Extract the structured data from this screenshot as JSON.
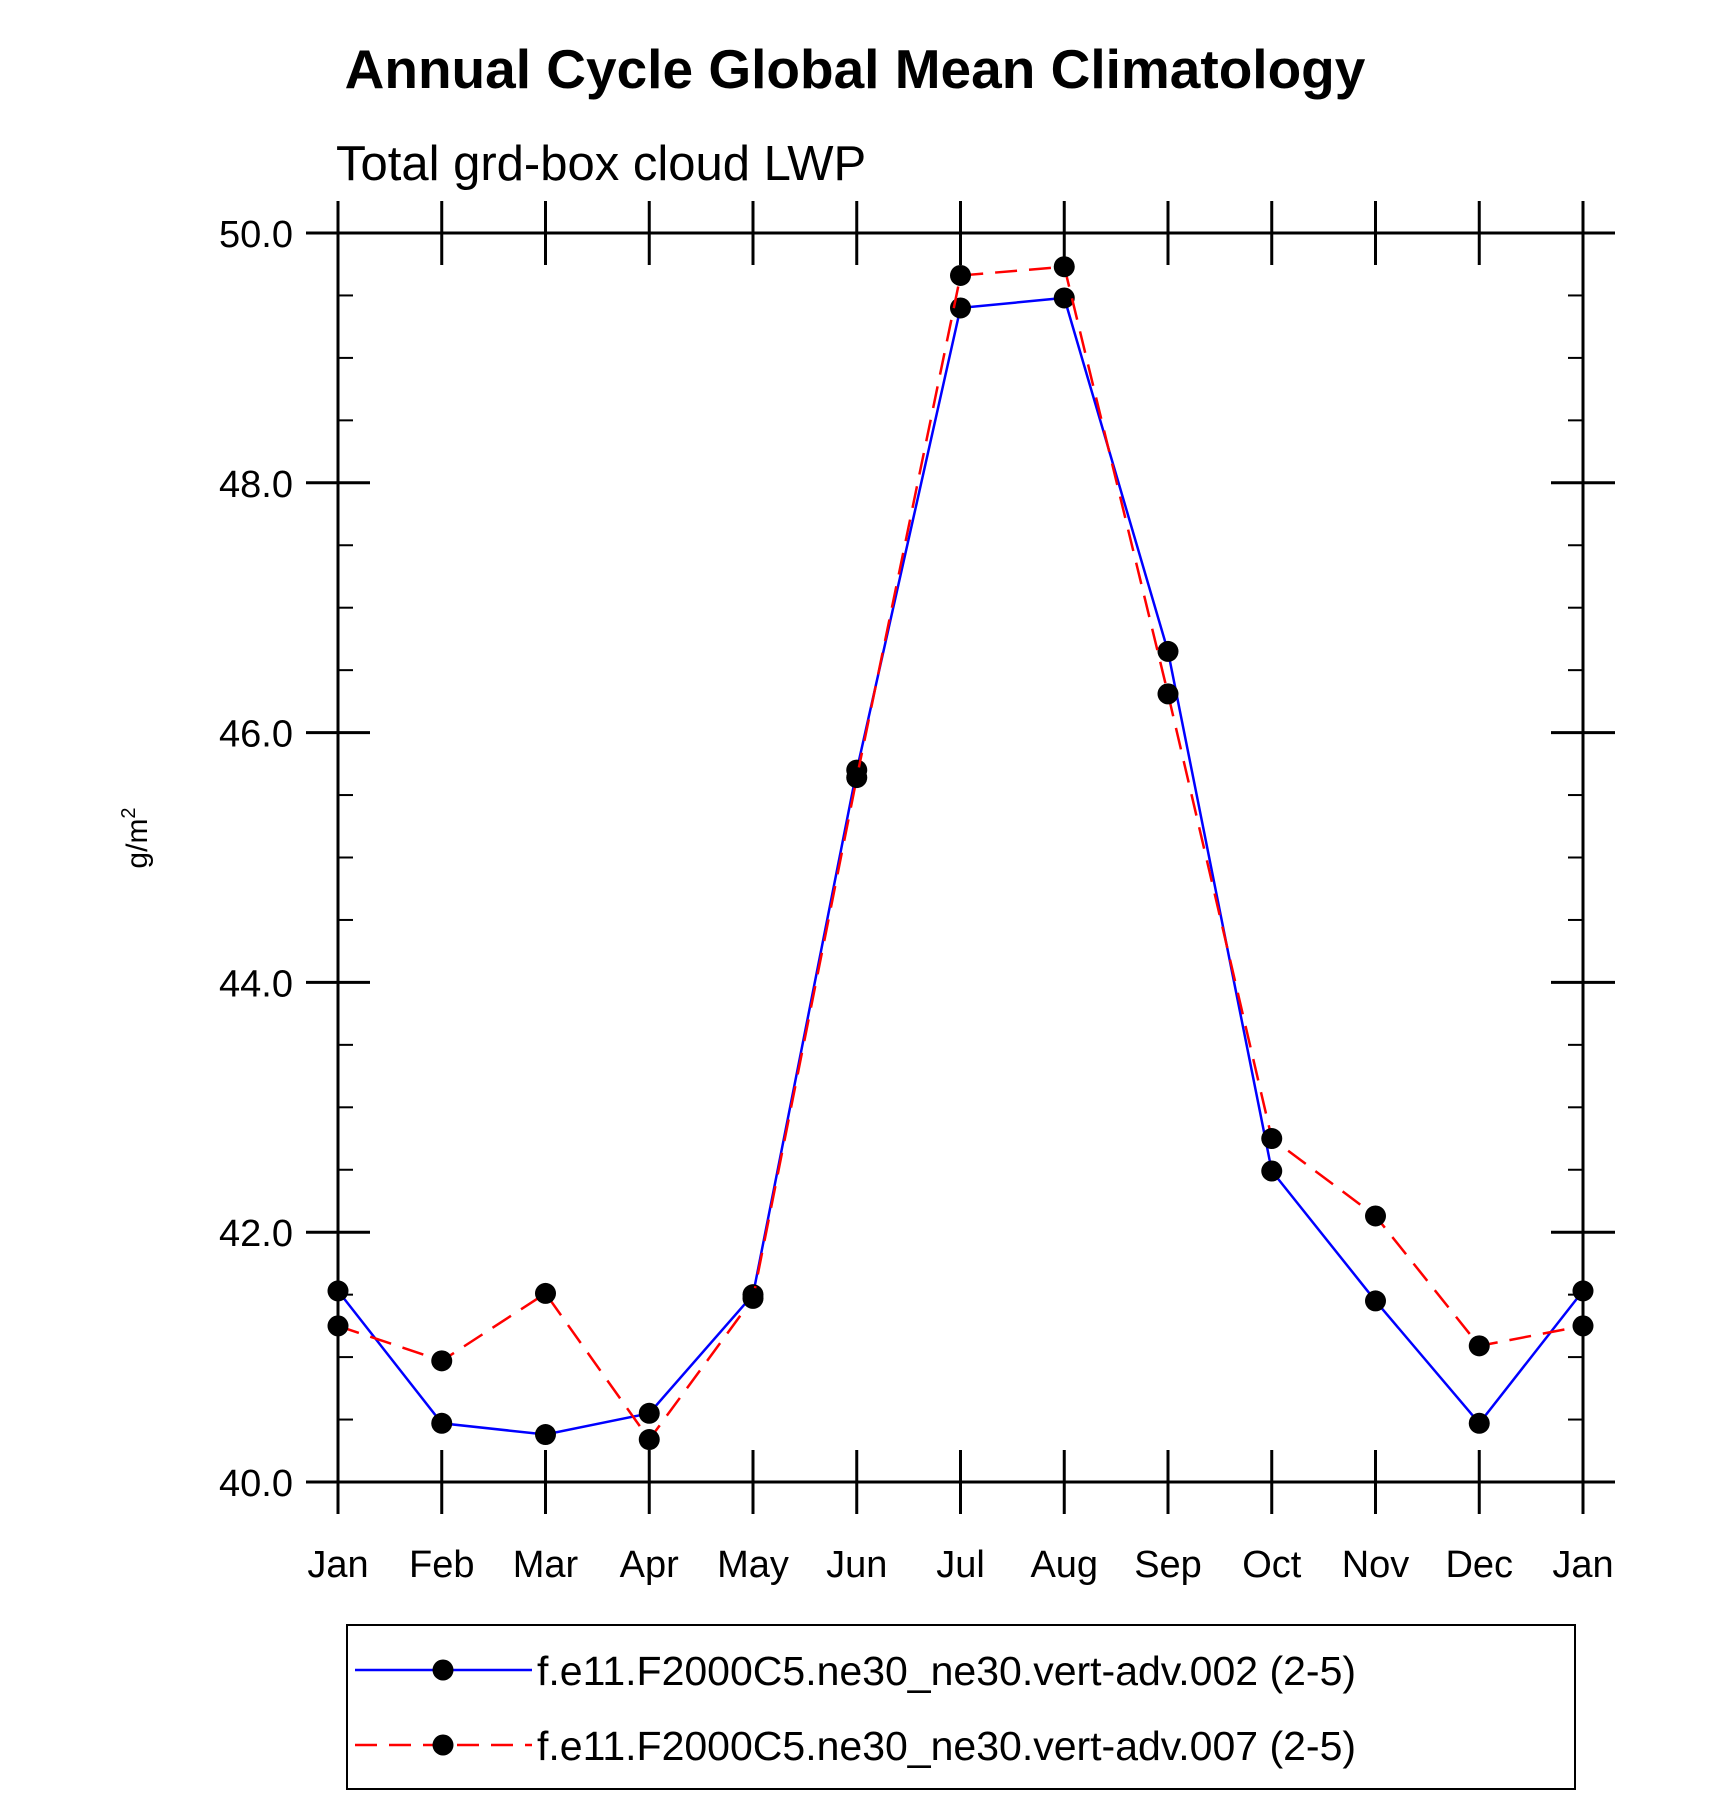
{
  "chart_data": {
    "type": "line",
    "title": "Annual Cycle Global Mean Climatology",
    "subtitle": "Total grd-box cloud LWP",
    "ylabel": "g/m",
    "ylabel_superscript": "2",
    "xlabel": "",
    "categories": [
      "Jan",
      "Feb",
      "Mar",
      "Apr",
      "May",
      "Jun",
      "Jul",
      "Aug",
      "Sep",
      "Oct",
      "Nov",
      "Dec",
      "Jan"
    ],
    "ylim": [
      40.0,
      50.0
    ],
    "yticks": [
      40.0,
      42.0,
      44.0,
      46.0,
      48.0,
      50.0
    ],
    "ytick_labels": [
      "40.0",
      "42.0",
      "44.0",
      "46.0",
      "48.0",
      "50.0"
    ],
    "y_minor_step": 0.5,
    "grid": false,
    "legend_position": "bottom",
    "series": [
      {
        "name": "f.e11.F2000C5.ne30_ne30.vert-adv.002 (2-5)",
        "color": "#0000ff",
        "dash": "solid",
        "marker": "filled-circle",
        "values": [
          41.53,
          40.47,
          40.38,
          40.55,
          41.5,
          45.7,
          49.4,
          49.48,
          46.65,
          42.49,
          41.45,
          40.47,
          41.53
        ]
      },
      {
        "name": "f.e11.F2000C5.ne30_ne30.vert-adv.007 (2-5)",
        "color": "#ff0000",
        "dash": "dashed",
        "marker": "filled-circle",
        "values": [
          41.25,
          40.97,
          41.51,
          40.34,
          41.47,
          45.64,
          49.66,
          49.73,
          46.31,
          42.75,
          42.13,
          41.09,
          41.25
        ]
      }
    ]
  }
}
